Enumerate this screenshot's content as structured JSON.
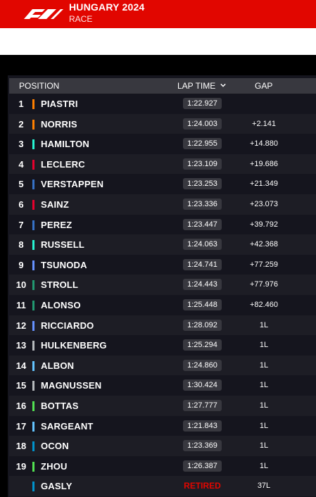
{
  "header": {
    "title": "HUNGARY 2024",
    "subtitle": "RACE",
    "brand_color": "#e10600"
  },
  "columns": {
    "position": "POSITION",
    "lap_time": "LAP TIME",
    "gap": "GAP"
  },
  "rows": [
    {
      "pos": "1",
      "name": "PIASTRI",
      "lap": "1:22.927",
      "gap": "",
      "color": "#ff8000"
    },
    {
      "pos": "2",
      "name": "NORRIS",
      "lap": "1:24.003",
      "gap": "+2.141",
      "color": "#ff8000"
    },
    {
      "pos": "3",
      "name": "HAMILTON",
      "lap": "1:22.955",
      "gap": "+14.880",
      "color": "#27f4d2"
    },
    {
      "pos": "4",
      "name": "LECLERC",
      "lap": "1:23.109",
      "gap": "+19.686",
      "color": "#e8002d"
    },
    {
      "pos": "5",
      "name": "VERSTAPPEN",
      "lap": "1:23.253",
      "gap": "+21.349",
      "color": "#3671c6"
    },
    {
      "pos": "6",
      "name": "SAINZ",
      "lap": "1:23.336",
      "gap": "+23.073",
      "color": "#e8002d"
    },
    {
      "pos": "7",
      "name": "PEREZ",
      "lap": "1:23.447",
      "gap": "+39.792",
      "color": "#3671c6"
    },
    {
      "pos": "8",
      "name": "RUSSELL",
      "lap": "1:24.063",
      "gap": "+42.368",
      "color": "#27f4d2"
    },
    {
      "pos": "9",
      "name": "TSUNODA",
      "lap": "1:24.741",
      "gap": "+77.259",
      "color": "#6692ff"
    },
    {
      "pos": "10",
      "name": "STROLL",
      "lap": "1:24.443",
      "gap": "+77.976",
      "color": "#229971"
    },
    {
      "pos": "11",
      "name": "ALONSO",
      "lap": "1:25.448",
      "gap": "+82.460",
      "color": "#229971"
    },
    {
      "pos": "12",
      "name": "RICCIARDO",
      "lap": "1:28.092",
      "gap": "1L",
      "color": "#6692ff"
    },
    {
      "pos": "13",
      "name": "HULKENBERG",
      "lap": "1:25.294",
      "gap": "1L",
      "color": "#b6babd"
    },
    {
      "pos": "14",
      "name": "ALBON",
      "lap": "1:24.860",
      "gap": "1L",
      "color": "#64c4ff"
    },
    {
      "pos": "15",
      "name": "MAGNUSSEN",
      "lap": "1:30.424",
      "gap": "1L",
      "color": "#b6babd"
    },
    {
      "pos": "16",
      "name": "BOTTAS",
      "lap": "1:27.777",
      "gap": "1L",
      "color": "#52e252"
    },
    {
      "pos": "17",
      "name": "SARGEANT",
      "lap": "1:21.843",
      "gap": "1L",
      "color": "#64c4ff"
    },
    {
      "pos": "18",
      "name": "OCON",
      "lap": "1:23.369",
      "gap": "1L",
      "color": "#0093cc"
    },
    {
      "pos": "19",
      "name": "ZHOU",
      "lap": "1:26.387",
      "gap": "1L",
      "color": "#52e252"
    },
    {
      "pos": "",
      "name": "GASLY",
      "lap": "RETIRED",
      "gap": "37L",
      "color": "#0093cc",
      "retired": true
    }
  ]
}
